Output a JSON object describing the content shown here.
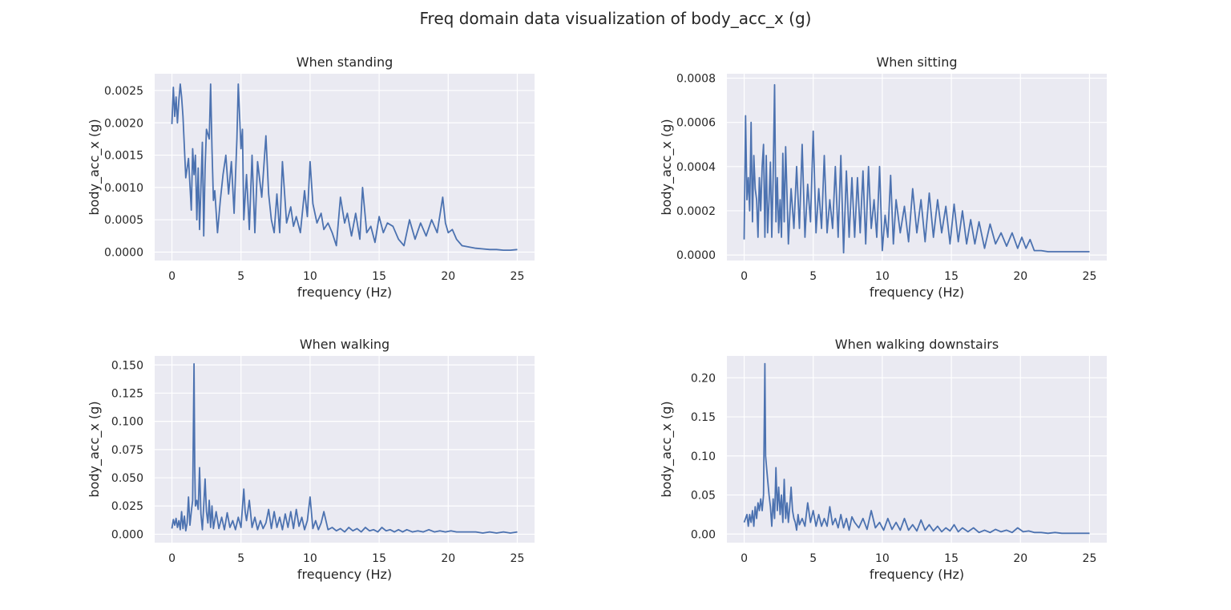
{
  "figure": {
    "title": "Freq domain data visualization of body_acc_x (g)",
    "colors": {
      "line": "#4c72b0",
      "axes_bg": "#eaeaf2",
      "grid": "#ffffff",
      "text": "#262626"
    }
  },
  "chart_data": [
    {
      "type": "line",
      "title": "When standing",
      "xlabel": "frequency (Hz)",
      "ylabel": "body_acc_x (g)",
      "xlim": [
        -1.25,
        26.25
      ],
      "ylim": [
        -0.00013,
        0.00276
      ],
      "xticks": [
        0,
        5,
        10,
        15,
        20,
        25
      ],
      "xtick_labels": [
        "0",
        "5",
        "10",
        "15",
        "20",
        "25"
      ],
      "yticks": [
        0.0,
        0.0005,
        0.001,
        0.0015,
        0.002,
        0.0025
      ],
      "ytick_labels": [
        "0.0000",
        "0.0005",
        "0.0010",
        "0.0015",
        "0.0020",
        "0.0025"
      ],
      "grid": true,
      "series": [
        {
          "x": [
            0,
            0.1,
            0.2,
            0.3,
            0.4,
            0.5,
            0.6,
            0.7,
            0.8,
            1.0,
            1.2,
            1.4,
            1.5,
            1.6,
            1.7,
            1.8,
            1.9,
            2.0,
            2.2,
            2.3,
            2.4,
            2.5,
            2.7,
            2.8,
            2.9,
            3.0,
            3.1,
            3.3,
            3.5,
            3.7,
            3.9,
            4.1,
            4.3,
            4.5,
            4.7,
            4.8,
            4.9,
            5.0,
            5.1,
            5.2,
            5.4,
            5.6,
            5.8,
            6.0,
            6.2,
            6.5,
            6.8,
            7.0,
            7.2,
            7.4,
            7.6,
            7.8,
            8.0,
            8.3,
            8.6,
            8.8,
            9.0,
            9.3,
            9.6,
            9.8,
            10.0,
            10.2,
            10.5,
            10.8,
            11.0,
            11.3,
            11.6,
            11.9,
            12.2,
            12.5,
            12.7,
            13.0,
            13.3,
            13.6,
            13.8,
            14.1,
            14.4,
            14.7,
            15.0,
            15.3,
            15.6,
            16.0,
            16.4,
            16.8,
            17.2,
            17.6,
            18.0,
            18.4,
            18.8,
            19.2,
            19.6,
            19.8,
            20.0,
            20.3,
            20.6,
            21.0,
            21.5,
            22.0,
            22.5,
            23.0,
            23.5,
            24.0,
            24.5,
            25.0
          ],
          "y": [
            0.00198,
            0.00255,
            0.0021,
            0.0024,
            0.002,
            0.00235,
            0.0026,
            0.0024,
            0.0021,
            0.00115,
            0.00145,
            0.00065,
            0.0016,
            0.0012,
            0.0015,
            0.0005,
            0.0013,
            0.00035,
            0.0017,
            0.00025,
            0.0013,
            0.0019,
            0.00175,
            0.0026,
            0.0016,
            0.0008,
            0.00095,
            0.0003,
            0.0008,
            0.0012,
            0.0015,
            0.0009,
            0.0014,
            0.0006,
            0.00175,
            0.0026,
            0.0021,
            0.0016,
            0.0019,
            0.0005,
            0.0012,
            0.00035,
            0.0015,
            0.0003,
            0.0014,
            0.00085,
            0.0018,
            0.0009,
            0.0005,
            0.0003,
            0.0009,
            0.0003,
            0.0014,
            0.00045,
            0.0007,
            0.0004,
            0.00055,
            0.0003,
            0.00095,
            0.00055,
            0.0014,
            0.00075,
            0.00045,
            0.0006,
            0.00035,
            0.00045,
            0.0003,
            0.0001,
            0.00085,
            0.00045,
            0.0006,
            0.00025,
            0.0006,
            0.0002,
            0.001,
            0.0003,
            0.0004,
            0.00015,
            0.00055,
            0.0003,
            0.00045,
            0.0004,
            0.0002,
            0.0001,
            0.0005,
            0.0002,
            0.00045,
            0.00025,
            0.0005,
            0.0003,
            0.00085,
            0.00045,
            0.0003,
            0.00035,
            0.0002,
            0.0001,
            8e-05,
            6e-05,
            5e-05,
            4e-05,
            4e-05,
            3e-05,
            3e-05,
            4e-05
          ]
        }
      ]
    },
    {
      "type": "line",
      "title": "When sitting",
      "xlabel": "frequency (Hz)",
      "ylabel": "body_acc_x (g)",
      "xlim": [
        -1.25,
        26.25
      ],
      "ylim": [
        -2.5e-05,
        0.00082
      ],
      "xticks": [
        0,
        5,
        10,
        15,
        20,
        25
      ],
      "xtick_labels": [
        "0",
        "5",
        "10",
        "15",
        "20",
        "25"
      ],
      "yticks": [
        0.0,
        0.0002,
        0.0004,
        0.0006,
        0.0008
      ],
      "ytick_labels": [
        "0.0000",
        "0.0002",
        "0.0004",
        "0.0006",
        "0.0008"
      ],
      "grid": true,
      "series": [
        {
          "x": [
            0,
            0.1,
            0.2,
            0.3,
            0.4,
            0.5,
            0.6,
            0.7,
            0.8,
            0.9,
            1.0,
            1.1,
            1.2,
            1.3,
            1.4,
            1.5,
            1.6,
            1.7,
            1.8,
            1.9,
            2.0,
            2.1,
            2.2,
            2.3,
            2.4,
            2.5,
            2.6,
            2.7,
            2.8,
            2.9,
            3.0,
            3.2,
            3.4,
            3.6,
            3.8,
            4.0,
            4.2,
            4.4,
            4.6,
            4.8,
            5.0,
            5.2,
            5.4,
            5.6,
            5.8,
            6.0,
            6.2,
            6.4,
            6.6,
            6.8,
            7.0,
            7.2,
            7.4,
            7.6,
            7.8,
            8.0,
            8.2,
            8.4,
            8.6,
            8.8,
            9.0,
            9.2,
            9.4,
            9.6,
            9.8,
            10.0,
            10.2,
            10.4,
            10.6,
            10.8,
            11.0,
            11.3,
            11.6,
            11.9,
            12.2,
            12.5,
            12.8,
            13.1,
            13.4,
            13.7,
            14.0,
            14.3,
            14.6,
            14.9,
            15.2,
            15.5,
            15.8,
            16.1,
            16.4,
            16.7,
            17.0,
            17.4,
            17.8,
            18.2,
            18.6,
            19.0,
            19.4,
            19.8,
            20.1,
            20.4,
            20.7,
            21.0,
            21.5,
            22.0,
            22.5,
            23.0,
            23.5,
            24.0,
            24.5,
            25.0
          ],
          "y": [
            7e-05,
            0.00063,
            0.00025,
            0.00035,
            0.0002,
            0.0006,
            0.00015,
            0.00045,
            0.0003,
            0.00025,
            8e-05,
            0.00035,
            0.0002,
            0.0004,
            0.0005,
            8e-05,
            0.00045,
            0.0001,
            0.00025,
            0.00042,
            8e-05,
            0.00035,
            0.00077,
            0.00015,
            0.00035,
            0.0001,
            0.00025,
            8e-05,
            0.00046,
            0.00015,
            0.00049,
            5e-05,
            0.0003,
            0.00012,
            0.0004,
            0.00012,
            0.0005,
            8e-05,
            0.00032,
            0.00015,
            0.00056,
            0.0001,
            0.0003,
            0.00012,
            0.00045,
            0.0001,
            0.00025,
            0.00012,
            0.0004,
            8e-05,
            0.00045,
            1e-05,
            0.00038,
            8e-05,
            0.00035,
            8e-05,
            0.00035,
            0.0001,
            0.00038,
            5e-05,
            0.0004,
            0.00012,
            0.00025,
            8e-05,
            0.0004,
            2e-05,
            0.00018,
            8e-05,
            0.00036,
            5e-05,
            0.00025,
            0.0001,
            0.00022,
            6e-05,
            0.0003,
            0.0001,
            0.00025,
            6e-05,
            0.00028,
            8e-05,
            0.00025,
            0.0001,
            0.00022,
            5e-05,
            0.00023,
            6e-05,
            0.0002,
            5e-05,
            0.00016,
            5e-05,
            0.00015,
            3e-05,
            0.00014,
            5e-05,
            0.0001,
            4e-05,
            0.0001,
            3e-05,
            8e-05,
            3e-05,
            7e-05,
            2e-05,
            2e-05,
            1.5e-05,
            1.5e-05,
            1.5e-05,
            1.5e-05,
            1.5e-05,
            1.5e-05,
            1.5e-05
          ]
        }
      ]
    },
    {
      "type": "line",
      "title": "When walking",
      "xlabel": "frequency (Hz)",
      "ylabel": "body_acc_x (g)",
      "xlim": [
        -1.25,
        26.25
      ],
      "ylim": [
        -0.0075,
        0.158
      ],
      "xticks": [
        0,
        5,
        10,
        15,
        20,
        25
      ],
      "xtick_labels": [
        "0",
        "5",
        "10",
        "15",
        "20",
        "25"
      ],
      "yticks": [
        0.0,
        0.025,
        0.05,
        0.075,
        0.1,
        0.125,
        0.15
      ],
      "ytick_labels": [
        "0.000",
        "0.025",
        "0.050",
        "0.075",
        "0.100",
        "0.125",
        "0.150"
      ],
      "grid": true,
      "series": [
        {
          "x": [
            0,
            0.1,
            0.2,
            0.3,
            0.4,
            0.5,
            0.6,
            0.7,
            0.8,
            0.9,
            1.0,
            1.1,
            1.2,
            1.3,
            1.4,
            1.5,
            1.6,
            1.65,
            1.7,
            1.8,
            1.9,
            2.0,
            2.1,
            2.2,
            2.3,
            2.4,
            2.5,
            2.6,
            2.7,
            2.8,
            2.9,
            3.0,
            3.2,
            3.4,
            3.6,
            3.8,
            4.0,
            4.2,
            4.4,
            4.6,
            4.8,
            5.0,
            5.2,
            5.3,
            5.4,
            5.6,
            5.8,
            6.0,
            6.2,
            6.4,
            6.6,
            6.8,
            7.0,
            7.2,
            7.4,
            7.6,
            7.8,
            8.0,
            8.2,
            8.4,
            8.6,
            8.8,
            9.0,
            9.2,
            9.4,
            9.6,
            9.8,
            10.0,
            10.2,
            10.4,
            10.6,
            10.8,
            11.0,
            11.3,
            11.6,
            11.9,
            12.2,
            12.5,
            12.8,
            13.1,
            13.4,
            13.7,
            14.0,
            14.3,
            14.6,
            14.9,
            15.2,
            15.5,
            15.8,
            16.1,
            16.4,
            16.7,
            17.0,
            17.4,
            17.8,
            18.2,
            18.6,
            19.0,
            19.4,
            19.8,
            20.2,
            20.6,
            21.0,
            21.5,
            22.0,
            22.5,
            23.0,
            23.5,
            24.0,
            24.5,
            25.0
          ],
          "y": [
            0.005,
            0.013,
            0.008,
            0.014,
            0.006,
            0.012,
            0.004,
            0.02,
            0.005,
            0.016,
            0.003,
            0.01,
            0.033,
            0.008,
            0.02,
            0.03,
            0.151,
            0.06,
            0.025,
            0.03,
            0.022,
            0.059,
            0.018,
            0.004,
            0.025,
            0.049,
            0.02,
            0.01,
            0.03,
            0.006,
            0.025,
            0.005,
            0.02,
            0.005,
            0.015,
            0.004,
            0.019,
            0.006,
            0.012,
            0.004,
            0.015,
            0.006,
            0.04,
            0.02,
            0.012,
            0.03,
            0.006,
            0.015,
            0.004,
            0.012,
            0.005,
            0.01,
            0.022,
            0.005,
            0.02,
            0.006,
            0.015,
            0.004,
            0.018,
            0.006,
            0.02,
            0.005,
            0.022,
            0.007,
            0.015,
            0.004,
            0.012,
            0.033,
            0.005,
            0.012,
            0.004,
            0.01,
            0.02,
            0.004,
            0.006,
            0.003,
            0.005,
            0.002,
            0.006,
            0.003,
            0.005,
            0.002,
            0.006,
            0.003,
            0.004,
            0.002,
            0.006,
            0.003,
            0.004,
            0.002,
            0.004,
            0.002,
            0.004,
            0.002,
            0.003,
            0.002,
            0.004,
            0.002,
            0.003,
            0.002,
            0.003,
            0.002,
            0.002,
            0.002,
            0.002,
            0.001,
            0.002,
            0.001,
            0.002,
            0.001,
            0.002
          ]
        }
      ]
    },
    {
      "type": "line",
      "title": "When walking downstairs",
      "xlabel": "frequency (Hz)",
      "ylabel": "body_acc_x (g)",
      "xlim": [
        -1.25,
        26.25
      ],
      "ylim": [
        -0.011,
        0.228
      ],
      "xticks": [
        0,
        5,
        10,
        15,
        20,
        25
      ],
      "xtick_labels": [
        "0",
        "5",
        "10",
        "15",
        "20",
        "25"
      ],
      "yticks": [
        0.0,
        0.05,
        0.1,
        0.15,
        0.2
      ],
      "ytick_labels": [
        "0.00",
        "0.05",
        "0.10",
        "0.15",
        "0.20"
      ],
      "grid": true,
      "series": [
        {
          "x": [
            0,
            0.1,
            0.2,
            0.3,
            0.4,
            0.5,
            0.6,
            0.7,
            0.8,
            0.9,
            1.0,
            1.1,
            1.2,
            1.3,
            1.4,
            1.5,
            1.55,
            1.6,
            1.7,
            1.8,
            1.9,
            2.0,
            2.1,
            2.2,
            2.3,
            2.4,
            2.5,
            2.6,
            2.7,
            2.8,
            2.9,
            3.0,
            3.1,
            3.2,
            3.3,
            3.4,
            3.5,
            3.6,
            3.7,
            3.8,
            3.9,
            4.0,
            4.2,
            4.4,
            4.6,
            4.8,
            5.0,
            5.2,
            5.4,
            5.6,
            5.8,
            6.0,
            6.2,
            6.4,
            6.6,
            6.8,
            7.0,
            7.2,
            7.4,
            7.6,
            7.8,
            8.0,
            8.3,
            8.6,
            8.9,
            9.2,
            9.5,
            9.8,
            10.1,
            10.4,
            10.7,
            11.0,
            11.3,
            11.6,
            11.9,
            12.2,
            12.5,
            12.8,
            13.1,
            13.4,
            13.7,
            14.0,
            14.3,
            14.6,
            14.9,
            15.2,
            15.5,
            15.8,
            16.2,
            16.6,
            17.0,
            17.4,
            17.8,
            18.2,
            18.6,
            19.0,
            19.4,
            19.8,
            20.2,
            20.6,
            21.0,
            21.5,
            22.0,
            22.5,
            23.0,
            23.5,
            24.0,
            24.5,
            25.0
          ],
          "y": [
            0.015,
            0.02,
            0.025,
            0.01,
            0.025,
            0.015,
            0.03,
            0.01,
            0.035,
            0.02,
            0.04,
            0.03,
            0.045,
            0.03,
            0.05,
            0.218,
            0.1,
            0.09,
            0.07,
            0.05,
            0.035,
            0.01,
            0.045,
            0.02,
            0.085,
            0.03,
            0.06,
            0.025,
            0.05,
            0.015,
            0.07,
            0.02,
            0.04,
            0.015,
            0.035,
            0.06,
            0.03,
            0.02,
            0.015,
            0.005,
            0.025,
            0.012,
            0.02,
            0.01,
            0.04,
            0.015,
            0.03,
            0.01,
            0.025,
            0.01,
            0.02,
            0.01,
            0.035,
            0.012,
            0.02,
            0.008,
            0.025,
            0.008,
            0.02,
            0.005,
            0.022,
            0.015,
            0.008,
            0.02,
            0.006,
            0.03,
            0.008,
            0.015,
            0.005,
            0.02,
            0.006,
            0.015,
            0.005,
            0.02,
            0.005,
            0.012,
            0.004,
            0.018,
            0.005,
            0.012,
            0.004,
            0.01,
            0.003,
            0.008,
            0.004,
            0.012,
            0.003,
            0.008,
            0.003,
            0.008,
            0.002,
            0.005,
            0.002,
            0.006,
            0.003,
            0.005,
            0.002,
            0.008,
            0.003,
            0.004,
            0.002,
            0.002,
            0.001,
            0.002,
            0.001,
            0.001,
            0.001,
            0.001,
            0.001
          ]
        }
      ]
    }
  ]
}
